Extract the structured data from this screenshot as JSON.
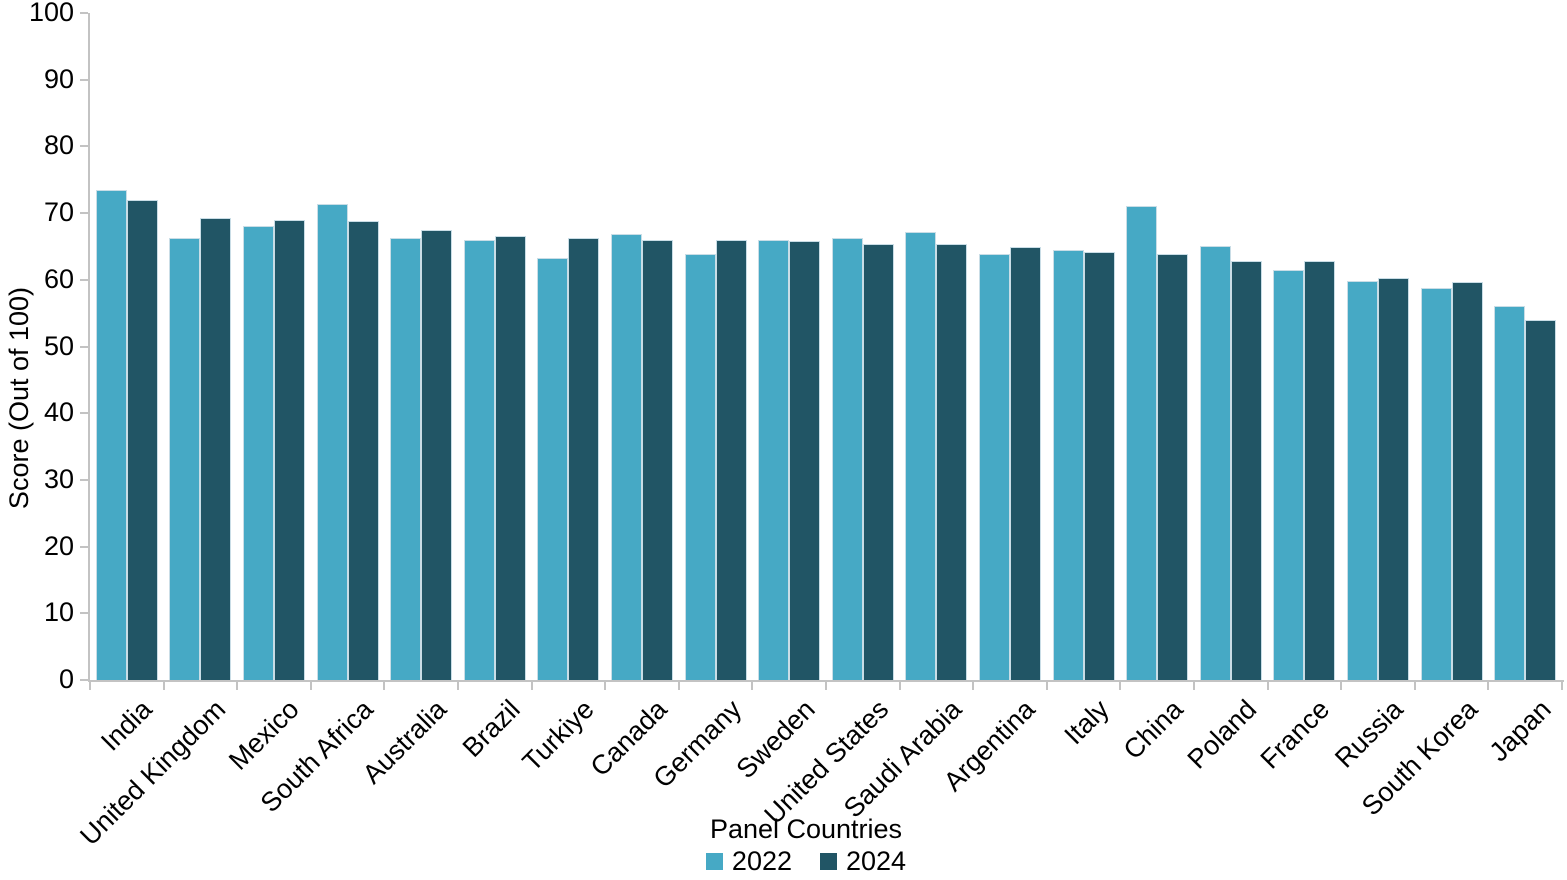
{
  "chart_data": {
    "type": "bar",
    "title": "",
    "xlabel": "Panel Countries",
    "ylabel": "Score (Out of 100)",
    "ylim": [
      0,
      100
    ],
    "ytick_step": 10,
    "grid": false,
    "legend_position": "bottom",
    "categories": [
      "India",
      "United Kingdom",
      "Mexico",
      "South Africa",
      "Australia",
      "Brazil",
      "Turkiye",
      "Canada",
      "Germany",
      "Sweden",
      "United States",
      "Saudi Arabia",
      "Argentina",
      "Italy",
      "China",
      "Poland",
      "France",
      "Russia",
      "South Korea",
      "Japan"
    ],
    "series": [
      {
        "name": "2022",
        "color": "#46A9C5",
        "values": [
          73.4,
          66.2,
          68.0,
          71.4,
          66.3,
          65.9,
          63.2,
          66.8,
          63.9,
          65.9,
          66.3,
          67.2,
          63.8,
          64.4,
          71.0,
          65.0,
          61.5,
          59.8,
          58.8,
          56.0
        ]
      },
      {
        "name": "2024",
        "color": "#215565",
        "values": [
          71.9,
          69.2,
          68.9,
          68.8,
          67.4,
          66.5,
          66.2,
          66.0,
          66.0,
          65.8,
          65.3,
          65.3,
          64.9,
          64.1,
          63.9,
          62.8,
          62.8,
          60.2,
          59.7,
          53.9
        ]
      }
    ],
    "colors": {
      "axis": "#C3C3C3",
      "bar_outline": "#C9DDE6",
      "text": "#000000"
    }
  }
}
